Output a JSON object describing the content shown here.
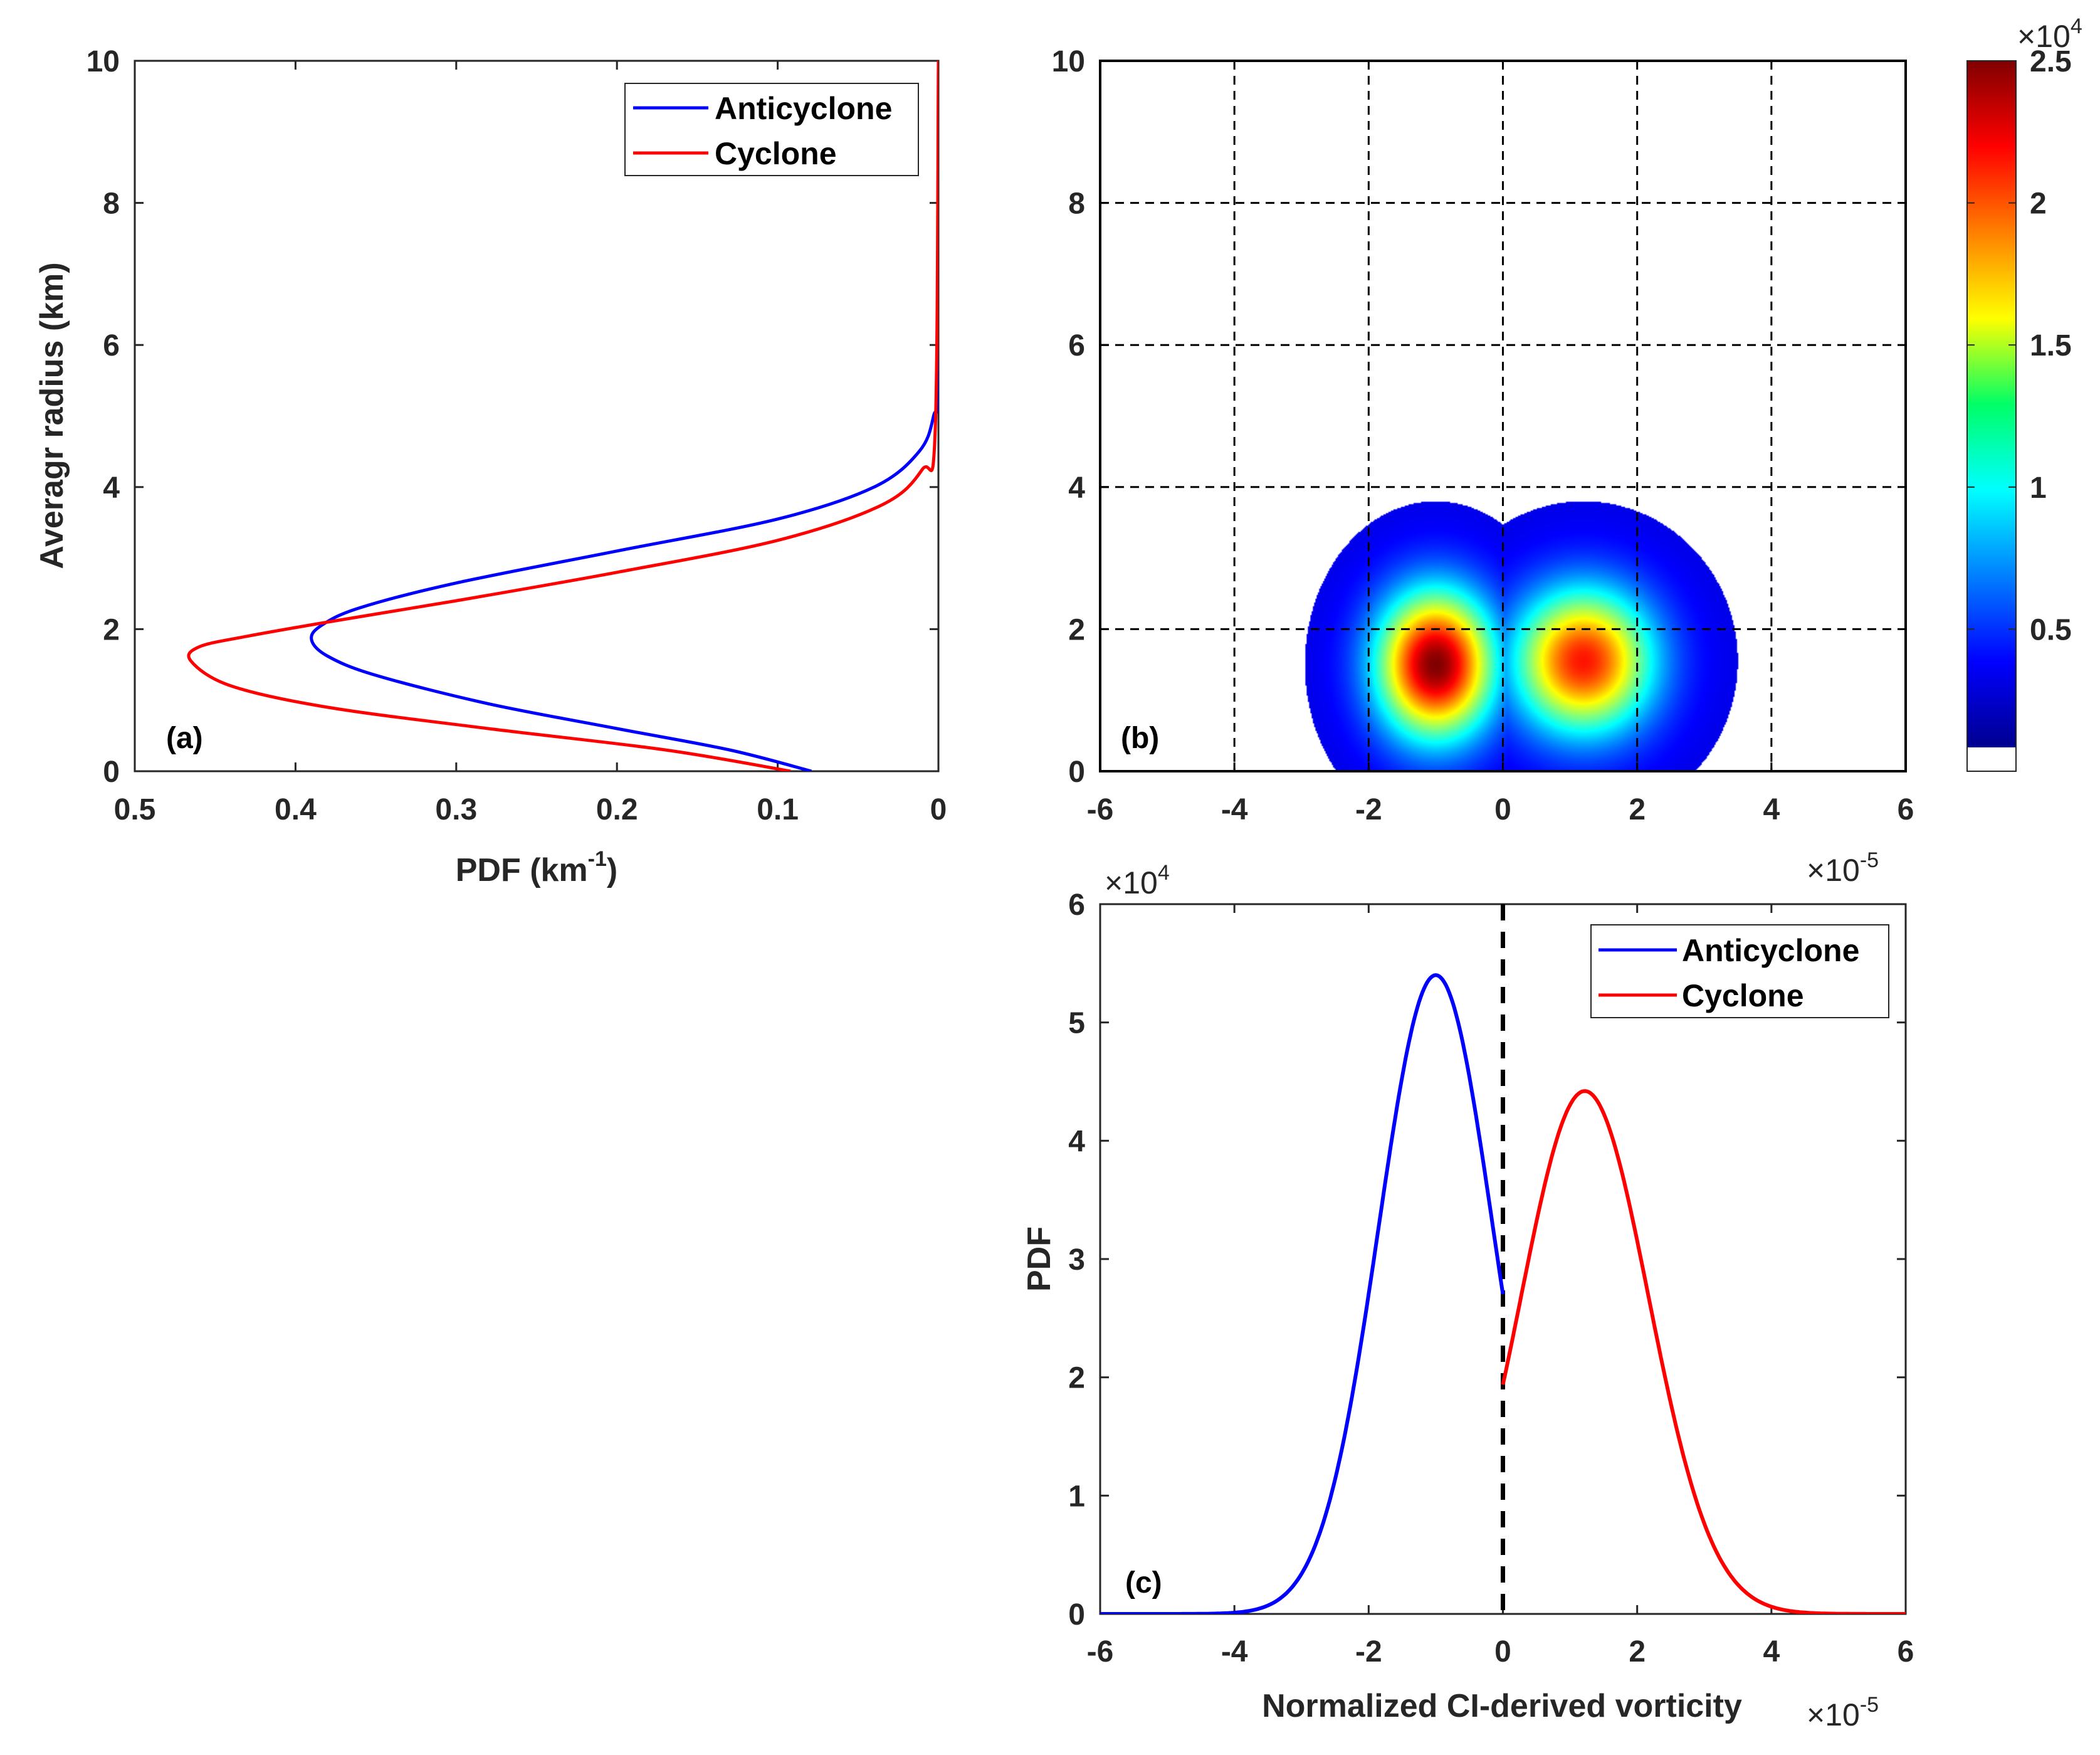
{
  "chart_data": [
    {
      "id": "a",
      "type": "line",
      "panel_label": "(a)",
      "xlabel": "PDF (km",
      "xlabel_sup": "-1",
      "xlabel_end": ")",
      "ylabel": "Averagr radius (km)",
      "xlim": [
        0.5,
        0
      ],
      "ylim": [
        0,
        10
      ],
      "xticks": [
        "0.5",
        "0.4",
        "0.3",
        "0.2",
        "0.1",
        "0"
      ],
      "yticks": [
        "0",
        "2",
        "4",
        "6",
        "8",
        "10"
      ],
      "legend": [
        "Anticyclone",
        "Cyclone"
      ],
      "series": [
        {
          "name": "Anticyclone",
          "color": "#0000ff",
          "x": [
            0.079,
            0.13,
            0.2,
            0.28,
            0.35,
            0.38,
            0.39,
            0.384,
            0.36,
            0.3,
            0.2,
            0.1,
            0.04,
            0.012,
            0.003,
            0.0005,
            0.0
          ],
          "y": [
            0.0,
            0.3,
            0.6,
            0.95,
            1.35,
            1.62,
            1.85,
            2.05,
            2.3,
            2.65,
            3.1,
            3.55,
            4.0,
            4.5,
            5.0,
            5.6,
            10.0
          ]
        },
        {
          "name": "Cyclone",
          "color": "#ff0000",
          "x": [
            0.092,
            0.17,
            0.28,
            0.38,
            0.44,
            0.465,
            0.46,
            0.43,
            0.38,
            0.3,
            0.2,
            0.1,
            0.035,
            0.01,
            0.002,
            0.0
          ],
          "y": [
            0.0,
            0.3,
            0.6,
            0.9,
            1.2,
            1.55,
            1.75,
            1.9,
            2.1,
            2.4,
            2.8,
            3.25,
            3.75,
            4.25,
            4.8,
            10.0
          ]
        }
      ]
    },
    {
      "id": "b",
      "type": "heatmap",
      "panel_label": "(b)",
      "xlim": [
        -6,
        6
      ],
      "ylim": [
        0,
        10
      ],
      "xticks": [
        "-6",
        "-4",
        "-2",
        "0",
        "2",
        "4",
        "6"
      ],
      "yticks": [
        "0",
        "2",
        "4",
        "6",
        "8",
        "10"
      ],
      "colorbar": {
        "min": 0,
        "max": 25000,
        "ticks": [
          "0.5",
          "1",
          "1.5",
          "2",
          "2.5"
        ],
        "tick_values": [
          5000,
          10000,
          15000,
          20000,
          25000
        ],
        "multiplier": "×10",
        "multiplier_exp": "4"
      },
      "blobs": [
        {
          "cx": -1.0,
          "cy": 1.5,
          "peak": 25000,
          "extent_x": 1.95,
          "extent_y": 2.3
        },
        {
          "cx": 1.2,
          "cy": 1.55,
          "peak": 21000,
          "extent_x": 2.3,
          "extent_y": 2.25
        }
      ]
    },
    {
      "id": "c",
      "type": "line",
      "panel_label": "(c)",
      "xlabel": "Normalized CI-derived vorticity",
      "ylabel": "PDF",
      "xlim": [
        -6,
        6
      ],
      "ylim": [
        0,
        6
      ],
      "xticks": [
        "-6",
        "-4",
        "-2",
        "0",
        "2",
        "4",
        "6"
      ],
      "yticks": [
        "0",
        "1",
        "2",
        "3",
        "4",
        "5",
        "6"
      ],
      "x_multiplier": "×10",
      "x_multiplier_exp": "-5",
      "y_multiplier": "×10",
      "y_multiplier_exp": "4",
      "legend": [
        "Anticyclone",
        "Cyclone"
      ],
      "zero_line_x": 0,
      "series": [
        {
          "name": "Anticyclone",
          "color": "#0000ff",
          "mean": -1.0,
          "sigma": 0.85,
          "peak": 5.4,
          "x_range": [
            -6,
            0
          ]
        },
        {
          "name": "Cyclone",
          "color": "#ff0000",
          "mean": 1.22,
          "sigma": 0.95,
          "peak": 4.42,
          "x_range": [
            0,
            6
          ]
        }
      ]
    }
  ]
}
